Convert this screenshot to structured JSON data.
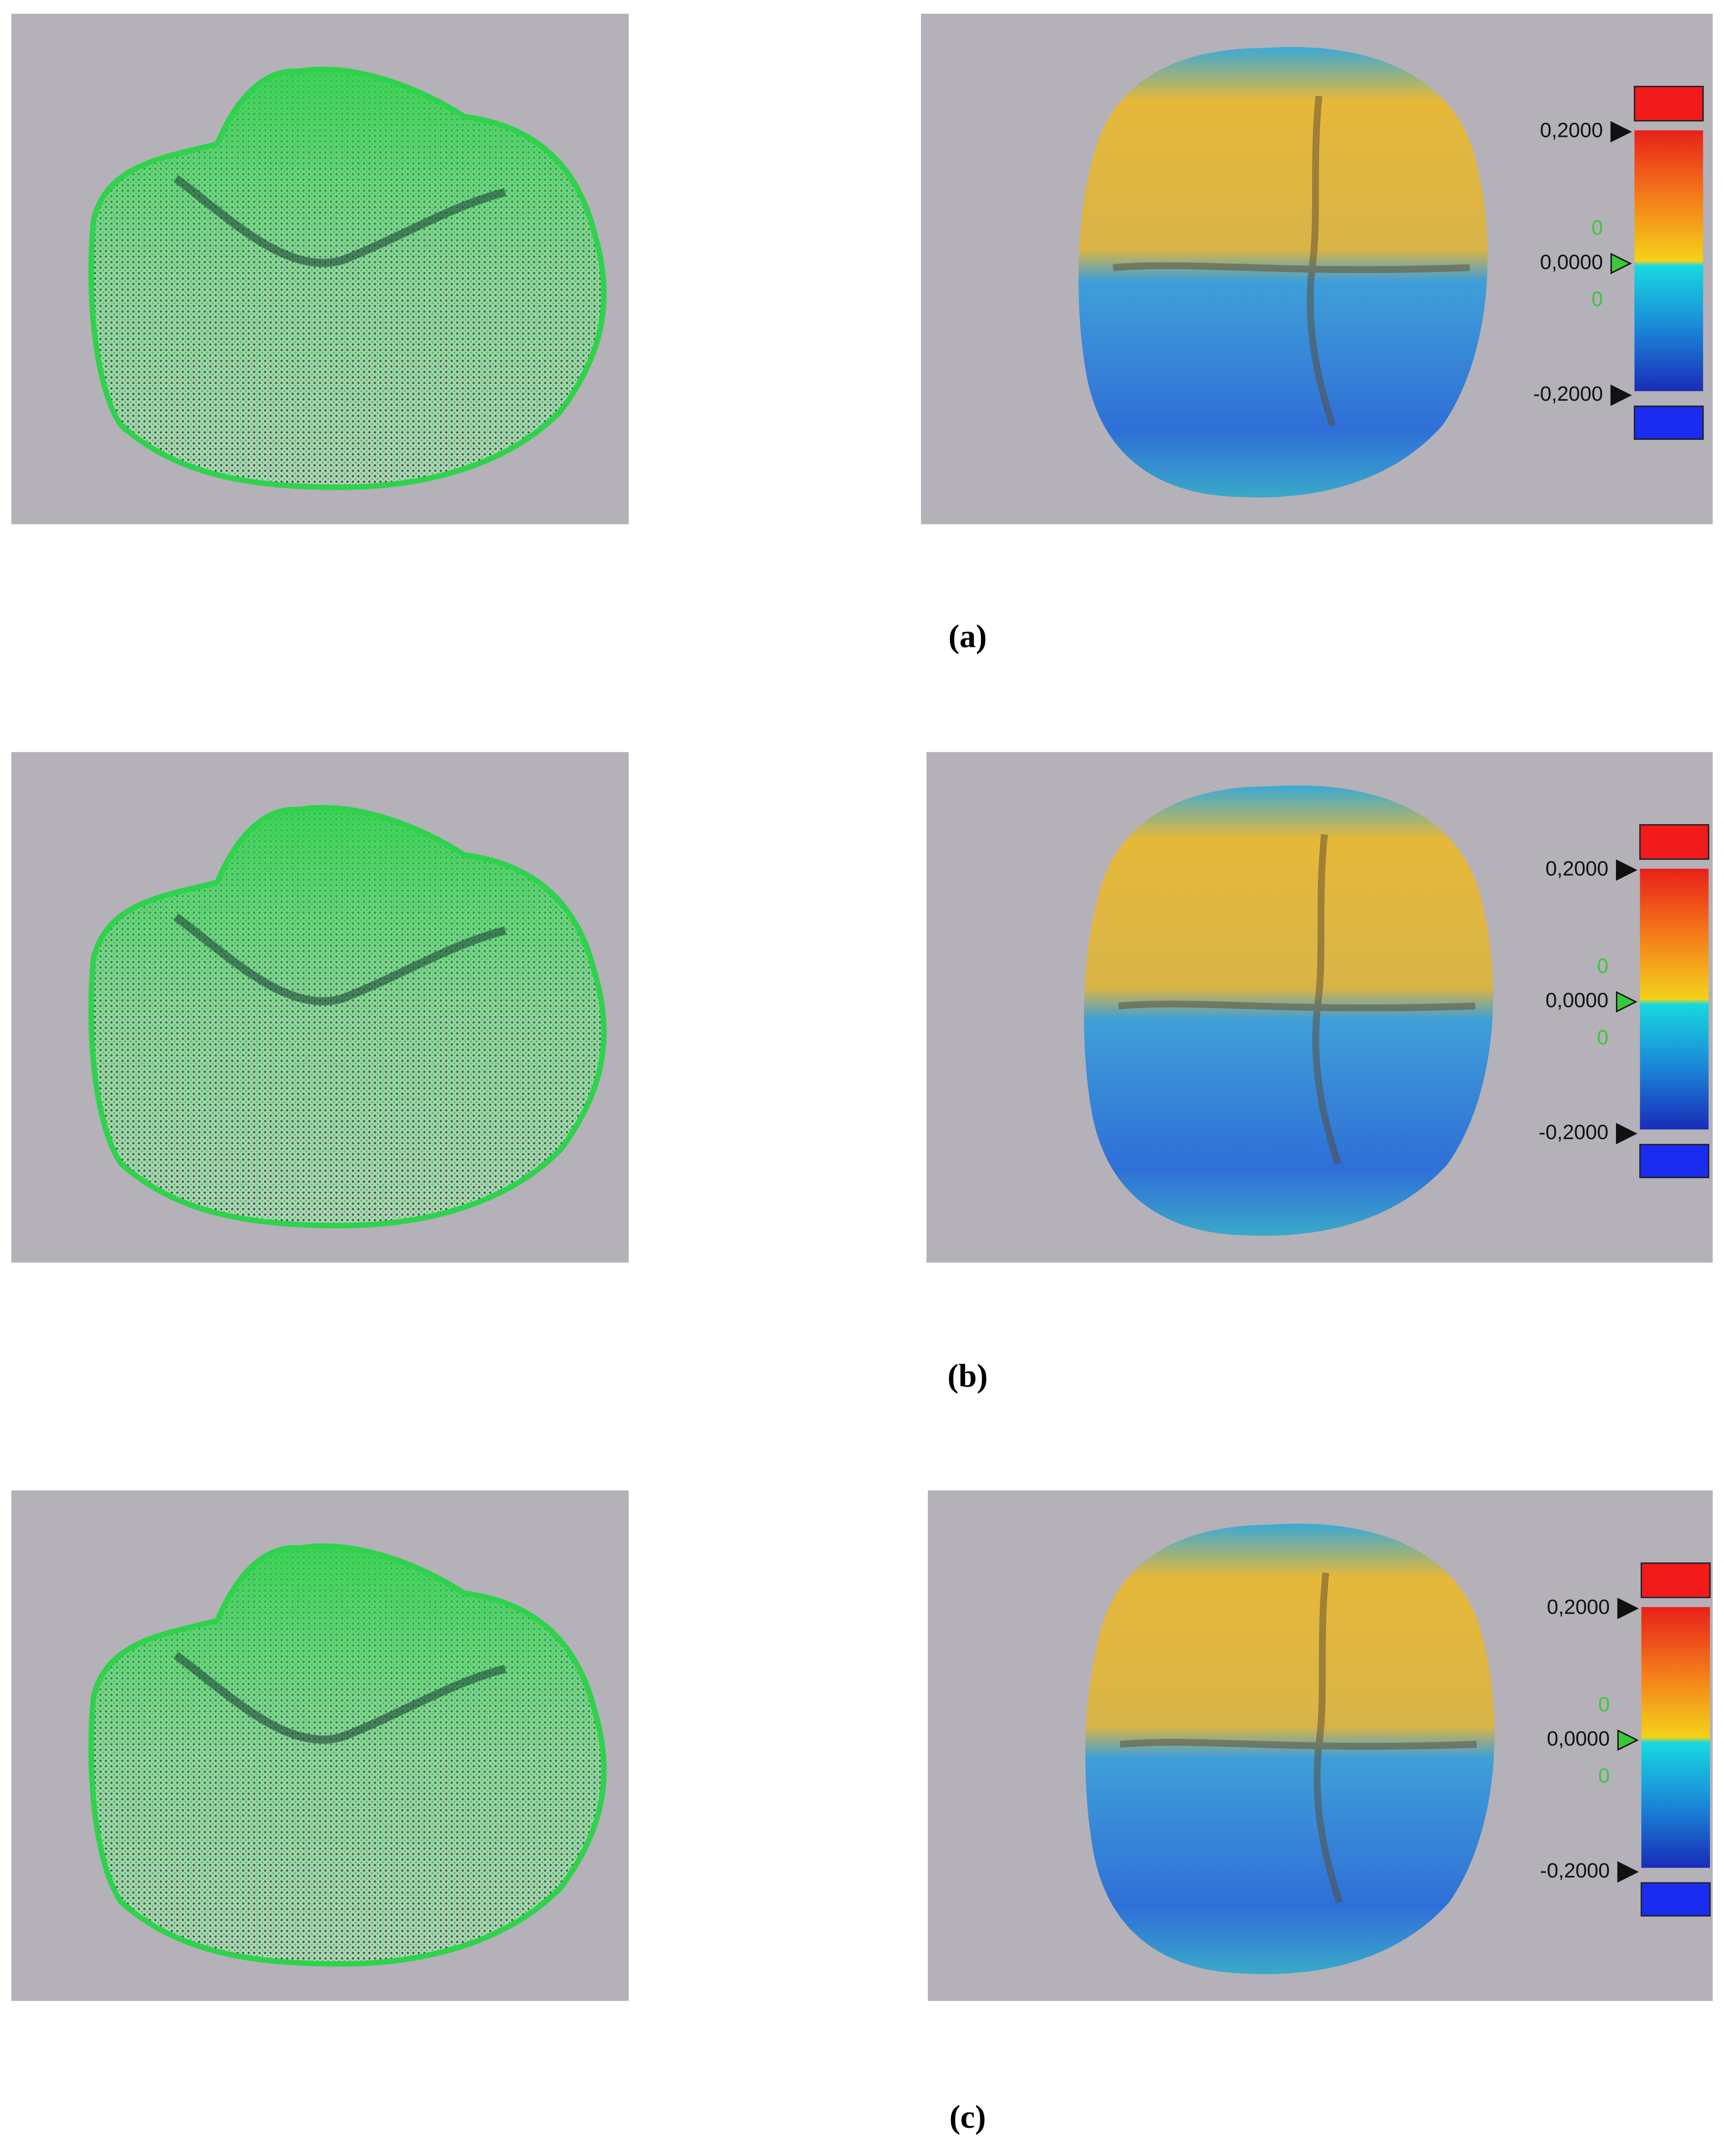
{
  "figure": {
    "panels": [
      {
        "caption": "(a)",
        "legend": {
          "max": "0,2000",
          "upper_zero": "0",
          "mid": "0,0000",
          "lower_zero": "0",
          "min": "-0,2000"
        }
      },
      {
        "caption": "(b)",
        "legend": {
          "max": "0,2000",
          "upper_zero": "0",
          "mid": "0,0000",
          "lower_zero": "0",
          "min": "-0,2000"
        }
      },
      {
        "caption": "(c)",
        "legend": {
          "max": "0,2000",
          "upper_zero": "0",
          "mid": "0,0000",
          "lower_zero": "0",
          "min": "-0,2000"
        }
      }
    ]
  }
}
